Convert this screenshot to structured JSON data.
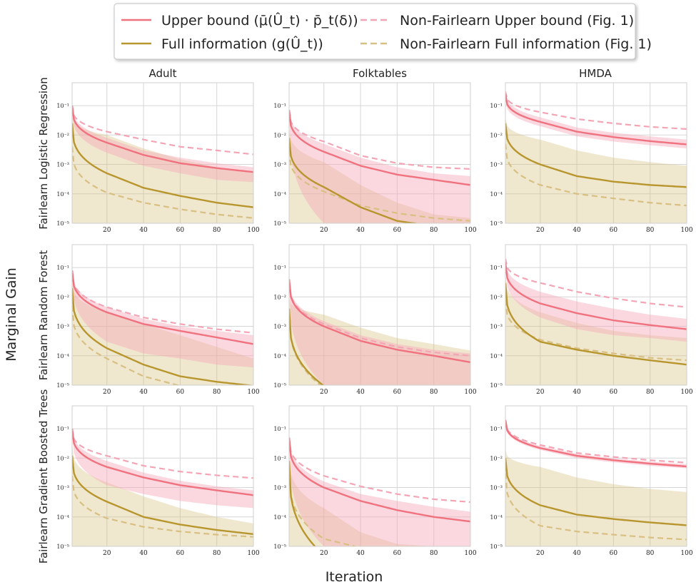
{
  "figure": {
    "ylabel": "Marginal Gain",
    "xlabel": "Iteration",
    "columns": [
      "Adult",
      "Folktables",
      "HMDA"
    ],
    "rows": [
      "Fairlearn Logistic Regression",
      "Fairlearn Random Forest",
      "Fairlearn Gradient Boosted Trees"
    ]
  },
  "legend": {
    "entries": [
      {
        "label": "Upper bound (μ̄(Û_t) · p̄_t(δ))",
        "color": "#f0727f",
        "style": "solid"
      },
      {
        "label": "Full information (g(Û_t))",
        "color": "#b8962e",
        "style": "solid"
      },
      {
        "label": "Non-Fairlearn Upper bound (Fig. 1)",
        "color": "#f4a5b5",
        "style": "dashed"
      },
      {
        "label": "Non-Fairlearn Full information (Fig. 1)",
        "color": "#d8bf82",
        "style": "dashed"
      }
    ]
  },
  "chart_data": {
    "type": "line",
    "x_range": [
      1,
      100
    ],
    "x_ticks": [
      20,
      40,
      60,
      80,
      100
    ],
    "y_scale": "log",
    "y_range": [
      1e-05,
      0.6
    ],
    "y_ticks": [
      "10⁻¹",
      "10⁻²",
      "10⁻³",
      "10⁻⁴",
      "10⁻⁵"
    ],
    "grid": true,
    "panels": [
      {
        "row": 0,
        "col": 0,
        "upper": [
          0.1,
          0.0055,
          0.0021,
          0.0011,
          0.00075,
          0.00055
        ],
        "full": [
          0.025,
          0.0005,
          0.00016,
          8.5e-05,
          5e-05,
          3.5e-05
        ],
        "nf_upper": [
          0.1,
          0.013,
          0.007,
          0.004,
          0.003,
          0.0022
        ],
        "nf_full": [
          0.004,
          0.00011,
          5e-05,
          3e-05,
          2e-05,
          1.5e-05
        ],
        "band_upper": [
          [
            0.07,
            0.12
          ],
          [
            0.0025,
            0.008
          ],
          [
            0.0009,
            0.003
          ],
          [
            0.0005,
            0.0017
          ],
          [
            0.0003,
            0.0011
          ],
          [
            0.00025,
            0.0008
          ]
        ],
        "band_full": [
          [
            1e-05,
            0.05
          ],
          [
            1e-05,
            0.01
          ],
          [
            1e-05,
            0.0035
          ],
          [
            1e-05,
            0.0015
          ],
          [
            1e-05,
            0.0008
          ],
          [
            1e-05,
            0.0005
          ]
        ]
      },
      {
        "row": 0,
        "col": 1,
        "upper": [
          0.07,
          0.0027,
          0.0009,
          0.00045,
          0.0003,
          0.0002
        ],
        "full": [
          0.008,
          0.00017,
          3.5e-05,
          1.2e-05,
          8e-06,
          6e-06
        ],
        "nf_upper": [
          0.07,
          0.006,
          0.002,
          0.0011,
          0.0008,
          0.0007
        ],
        "nf_full": [
          0.003,
          0.00012,
          4e-05,
          2.2e-05,
          1.5e-05,
          1.2e-05
        ],
        "band_upper": [
          [
            0.05,
            0.09
          ],
          [
            1e-05,
            0.005
          ],
          [
            1e-05,
            0.0017
          ],
          [
            1e-05,
            0.0008
          ],
          [
            1e-05,
            0.0005
          ],
          [
            1e-05,
            0.0004
          ]
        ],
        "band_full": [
          [
            1e-05,
            0.02
          ],
          [
            1e-05,
            0.0012
          ],
          [
            1e-05,
            0.0002
          ],
          [
            1e-05,
            5e-05
          ],
          [
            1e-05,
            2e-05
          ],
          [
            1e-05,
            1.5e-05
          ]
        ]
      },
      {
        "row": 0,
        "col": 2,
        "upper": [
          0.25,
          0.028,
          0.013,
          0.0085,
          0.0062,
          0.0048
        ],
        "full": [
          0.025,
          0.001,
          0.0004,
          0.00026,
          0.0002,
          0.00017
        ],
        "nf_upper": [
          0.3,
          0.06,
          0.035,
          0.025,
          0.019,
          0.016
        ],
        "nf_full": [
          0.005,
          0.0002,
          0.0001,
          7e-05,
          5e-05,
          4e-05
        ],
        "band_upper": [
          [
            0.18,
            0.35
          ],
          [
            0.02,
            0.04
          ],
          [
            0.009,
            0.018
          ],
          [
            0.006,
            0.012
          ],
          [
            0.0045,
            0.009
          ],
          [
            0.0035,
            0.007
          ]
        ],
        "band_full": [
          [
            1e-05,
            0.04
          ],
          [
            1e-05,
            0.007
          ],
          [
            1e-05,
            0.003
          ],
          [
            1e-05,
            0.0017
          ],
          [
            1e-05,
            0.0012
          ],
          [
            1e-05,
            0.0009
          ]
        ]
      },
      {
        "row": 1,
        "col": 0,
        "upper": [
          0.08,
          0.003,
          0.0012,
          0.0007,
          0.00042,
          0.00025
        ],
        "full": [
          0.02,
          0.00018,
          5e-05,
          2e-05,
          1.3e-05,
          9.5e-06
        ],
        "nf_upper": [
          0.08,
          0.0045,
          0.002,
          0.0012,
          0.0008,
          0.0006
        ],
        "nf_full": [
          0.005,
          8e-05,
          2e-05,
          9.5e-06,
          6e-06,
          4e-06
        ],
        "band_upper": [
          [
            0.06,
            0.1
          ],
          [
            0.0003,
            0.0045
          ],
          [
            0.00012,
            0.0018
          ],
          [
            8e-05,
            0.001
          ],
          [
            5e-05,
            0.0007
          ],
          [
            4e-05,
            0.0005
          ]
        ],
        "band_full": [
          [
            1e-05,
            0.04
          ],
          [
            1e-05,
            0.003
          ],
          [
            1e-05,
            0.0012
          ],
          [
            1e-05,
            0.0005
          ],
          [
            1e-05,
            0.0002
          ],
          [
            1e-05,
            8e-05
          ]
        ]
      },
      {
        "row": 1,
        "col": 1,
        "upper": [
          0.04,
          0.001,
          0.00032,
          0.00016,
          0.0001,
          6e-05
        ],
        "full": [
          0.004,
          9.5e-06,
          4e-06,
          3e-06,
          3e-06,
          3e-06
        ],
        "nf_upper": [
          0.04,
          0.0012,
          0.0004,
          0.0002,
          0.00013,
          0.0001
        ],
        "nf_full": [
          0.004,
          8e-06,
          3e-06,
          3e-06,
          3e-06,
          3e-06
        ],
        "band_upper": [
          [
            0.03,
            0.05
          ],
          [
            1e-05,
            0.0015
          ],
          [
            1e-05,
            0.0005
          ],
          [
            1e-05,
            0.00025
          ],
          [
            1e-05,
            0.00016
          ],
          [
            1e-05,
            0.00012
          ]
        ],
        "band_full": [
          [
            1e-05,
            0.01
          ],
          [
            1e-05,
            0.0025
          ],
          [
            1e-05,
            0.0009
          ],
          [
            1e-05,
            0.0004
          ],
          [
            1e-05,
            0.00025
          ],
          [
            1e-05,
            0.00015
          ]
        ]
      },
      {
        "row": 1,
        "col": 2,
        "upper": [
          0.15,
          0.006,
          0.0028,
          0.0016,
          0.0011,
          0.0008
        ],
        "full": [
          0.03,
          0.0003,
          0.00016,
          0.0001,
          7e-05,
          5e-05
        ],
        "nf_upper": [
          0.2,
          0.03,
          0.015,
          0.009,
          0.006,
          0.0045
        ],
        "nf_full": [
          0.008,
          0.00035,
          0.00018,
          0.00012,
          8.5e-05,
          7e-05
        ],
        "band_upper": [
          [
            0.1,
            0.22
          ],
          [
            0.002,
            0.015
          ],
          [
            0.0008,
            0.007
          ],
          [
            0.0005,
            0.004
          ],
          [
            0.0004,
            0.0025
          ],
          [
            0.0003,
            0.0018
          ]
        ],
        "band_full": [
          [
            1e-05,
            0.06
          ],
          [
            1e-05,
            0.003
          ],
          [
            1e-05,
            0.0013
          ],
          [
            1e-05,
            0.0007
          ],
          [
            1e-05,
            0.0005
          ],
          [
            1e-05,
            0.0004
          ]
        ]
      },
      {
        "row": 2,
        "col": 0,
        "upper": [
          0.1,
          0.005,
          0.0022,
          0.0012,
          0.0008,
          0.00055
        ],
        "full": [
          0.012,
          0.00033,
          0.0001,
          5.5e-05,
          3.6e-05,
          2.6e-05
        ],
        "nf_upper": [
          0.1,
          0.012,
          0.0055,
          0.0035,
          0.0026,
          0.0021
        ],
        "nf_full": [
          0.0025,
          9e-05,
          4.6e-05,
          3.2e-05,
          2.5e-05,
          2.1e-05
        ],
        "band_upper": [
          [
            0.07,
            0.13
          ],
          [
            0.0012,
            0.008
          ],
          [
            0.0006,
            0.0032
          ],
          [
            0.00035,
            0.0017
          ],
          [
            0.00025,
            0.0011
          ],
          [
            0.0002,
            0.0008
          ]
        ],
        "band_full": [
          [
            1e-05,
            0.03
          ],
          [
            1e-05,
            0.0015
          ],
          [
            1e-05,
            0.0005
          ],
          [
            1e-05,
            0.0002
          ],
          [
            1e-05,
            0.0001
          ],
          [
            1e-05,
            6e-05
          ]
        ]
      },
      {
        "row": 2,
        "col": 1,
        "upper": [
          0.05,
          0.001,
          0.00035,
          0.00017,
          0.0001,
          7e-05
        ],
        "full": [
          0.008,
          5e-06,
          3e-06,
          3e-06,
          3e-06,
          3e-06
        ],
        "nf_upper": [
          0.05,
          0.0025,
          0.0011,
          0.0006,
          0.0004,
          0.00032
        ],
        "nf_full": [
          0.004,
          1.8e-05,
          9e-06,
          7e-06,
          6e-06,
          5e-06
        ],
        "band_upper": [
          [
            0.035,
            0.07
          ],
          [
            1e-05,
            0.0016
          ],
          [
            1e-05,
            0.0006
          ],
          [
            1e-05,
            0.00035
          ],
          [
            1e-05,
            0.00022
          ],
          [
            1e-05,
            0.00015
          ]
        ],
        "band_full": [
          [
            1e-05,
            0.015
          ],
          [
            1e-05,
            0.0002
          ],
          [
            1e-05,
            3e-05
          ],
          [
            1e-05,
            1.2e-05
          ],
          [
            1e-05,
            1e-05
          ],
          [
            1e-05,
            1e-05
          ]
        ]
      },
      {
        "row": 2,
        "col": 2,
        "upper": [
          0.2,
          0.022,
          0.012,
          0.0085,
          0.0065,
          0.0052
        ],
        "full": [
          0.01,
          0.00025,
          0.00012,
          8.5e-05,
          6.5e-05,
          5.2e-05
        ],
        "nf_upper": [
          0.2,
          0.028,
          0.015,
          0.011,
          0.0085,
          0.007
        ],
        "nf_full": [
          0.003,
          5e-05,
          3.2e-05,
          2.5e-05,
          2e-05,
          1.7e-05
        ],
        "band_upper": [
          [
            0.17,
            0.22
          ],
          [
            0.019,
            0.026
          ],
          [
            0.01,
            0.014
          ],
          [
            0.0072,
            0.0098
          ],
          [
            0.0055,
            0.0076
          ],
          [
            0.0045,
            0.0062
          ]
        ],
        "band_full": [
          [
            1e-05,
            0.02
          ],
          [
            1e-05,
            0.005
          ],
          [
            1e-05,
            0.0022
          ],
          [
            1e-05,
            0.0013
          ],
          [
            1e-05,
            0.0009
          ],
          [
            1e-05,
            0.0007
          ]
        ]
      }
    ]
  }
}
